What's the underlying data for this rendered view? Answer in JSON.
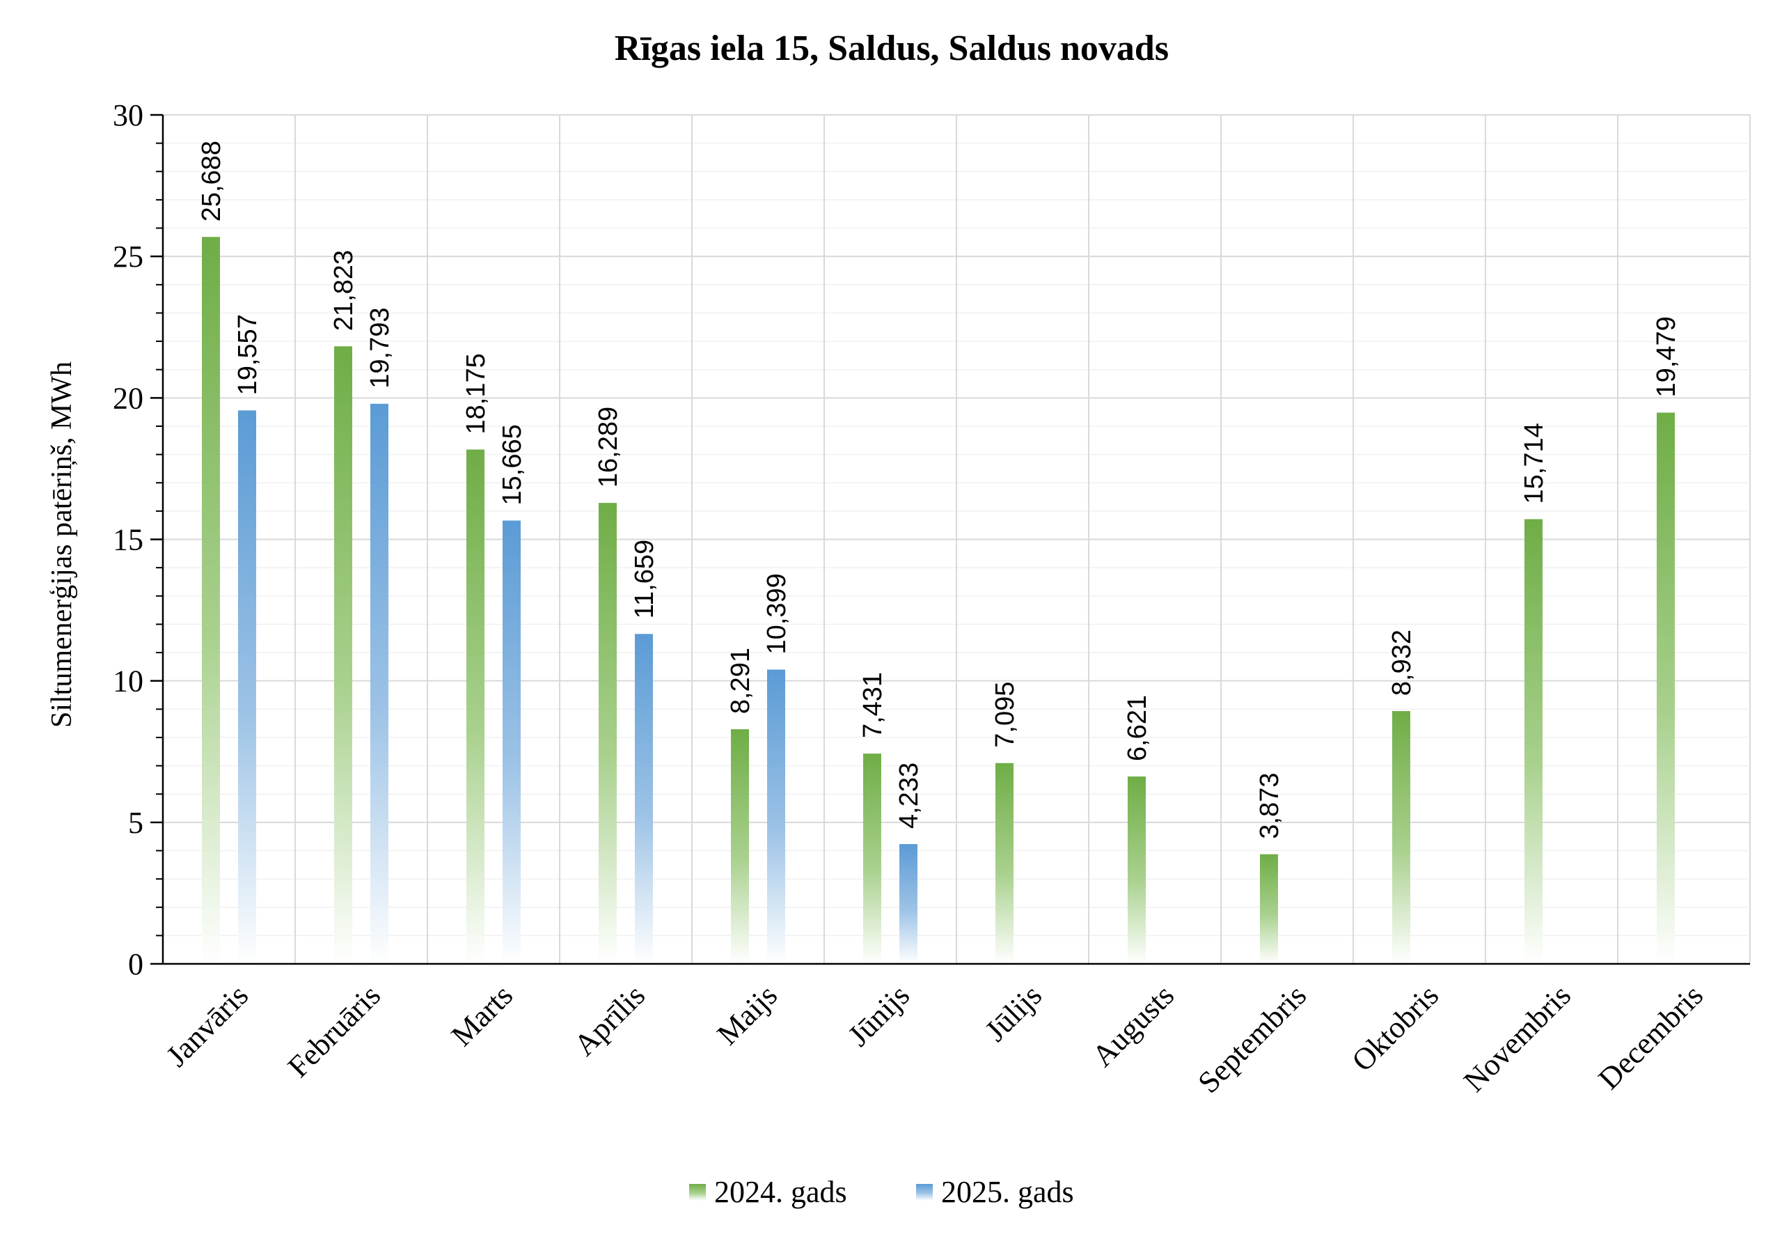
{
  "chart_data": {
    "type": "bar",
    "title": "Rīgas iela 15, Saldus, Saldus novads",
    "xlabel": "",
    "ylabel": "Siltumenerģijas patēriņš, MWh",
    "ylim": [
      0,
      30
    ],
    "yticks": [
      0,
      5,
      10,
      15,
      20,
      25,
      30
    ],
    "ytick_labels": [
      "0",
      "5",
      "10",
      "15",
      "20",
      "25",
      "30"
    ],
    "grid": true,
    "legend_position": "bottom",
    "categories": [
      "Janvāris",
      "Februāris",
      "Marts",
      "Aprīlis",
      "Maijs",
      "Jūnijs",
      "Jūlijs",
      "Augusts",
      "Septembris",
      "Oktobris",
      "Novembris",
      "Decembris"
    ],
    "series": [
      {
        "name": "2024. gads",
        "color": "#70ad47",
        "values": [
          25.688,
          21.823,
          18.175,
          16.289,
          8.291,
          7.431,
          7.095,
          6.621,
          3.873,
          8.932,
          15.714,
          19.479
        ],
        "labels": [
          "25,688",
          "21,823",
          "18,175",
          "16,289",
          "8,291",
          "7,431",
          "7,095",
          "6,621",
          "3,873",
          "8,932",
          "15,714",
          "19,479"
        ]
      },
      {
        "name": "2025. gads",
        "color": "#5b9bd5",
        "values": [
          19.557,
          19.793,
          15.665,
          11.659,
          10.399,
          4.233,
          null,
          null,
          null,
          null,
          null,
          null
        ],
        "labels": [
          "19,557",
          "19,793",
          "15,665",
          "11,659",
          "10,399",
          "4,233",
          "",
          "",
          "",
          "",
          "",
          ""
        ]
      }
    ]
  }
}
